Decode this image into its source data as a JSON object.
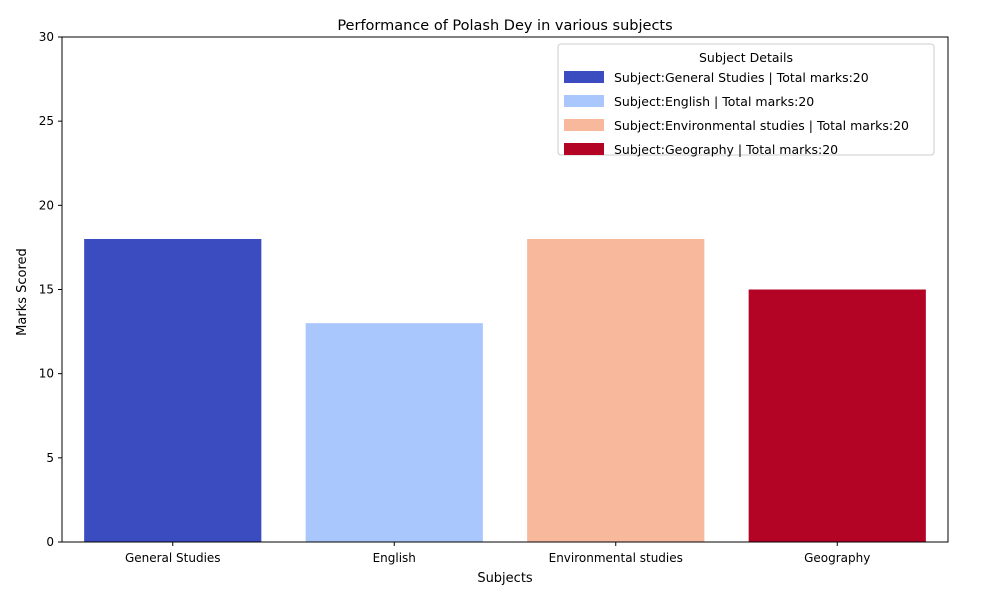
{
  "chart_data": {
    "type": "bar",
    "title": "Performance of Polash Dey in various subjects",
    "xlabel": "Subjects",
    "ylabel": "Marks Scored",
    "categories": [
      "General Studies",
      "English",
      "Environmental studies",
      "Geography"
    ],
    "values": [
      18,
      13,
      18,
      15
    ],
    "colors": [
      "#3b4cc0",
      "#aac7fd",
      "#f7b89c",
      "#b40426"
    ],
    "ylim": [
      0,
      30
    ],
    "yticks": [
      0,
      5,
      10,
      15,
      20,
      25,
      30
    ],
    "grid": false,
    "legend": {
      "title": "Subject Details",
      "placement": "top-right",
      "entries": [
        "Subject:General Studies | Total marks:20",
        "Subject:English  | Total marks:20",
        "Subject:Environmental studies | Total marks:20",
        "Subject:Geography | Total marks:20"
      ]
    }
  }
}
